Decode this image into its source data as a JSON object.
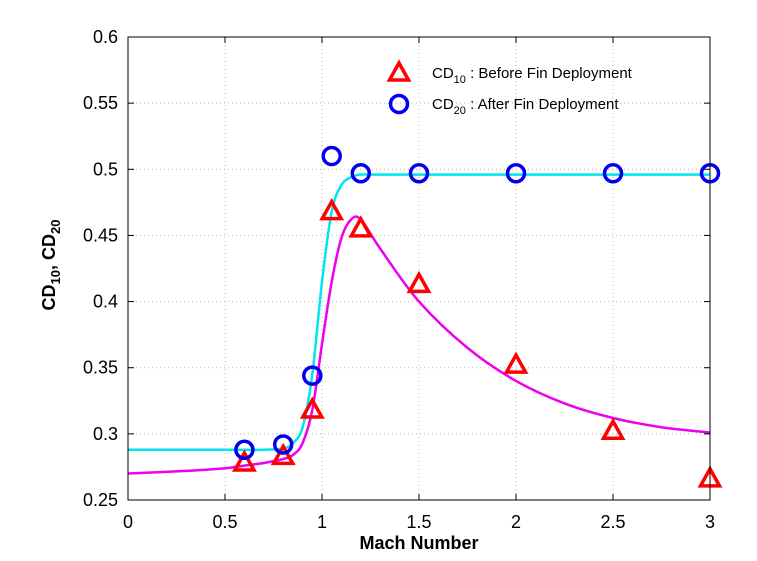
{
  "chart_data": {
    "type": "scatter",
    "xlabel": "Mach Number",
    "ylabel": {
      "base1": "CD",
      "sub1": "10",
      "sep": ", ",
      "base2": "CD",
      "sub2": "20"
    },
    "xlim": [
      0,
      3
    ],
    "ylim": [
      0.25,
      0.6
    ],
    "xticks": [
      "0",
      "0.5",
      "1",
      "1.5",
      "2",
      "2.5",
      "3"
    ],
    "yticks": [
      "0.25",
      "0.3",
      "0.35",
      "0.4",
      "0.45",
      "0.5",
      "0.55",
      "0.6"
    ],
    "grid": true,
    "legend_position": "top-right",
    "series": [
      {
        "legend": {
          "base": "CD",
          "sub": "10",
          "rest": " : Before Fin Deployment"
        },
        "marker": "triangle",
        "color": "#ff0000",
        "x": [
          0.6,
          0.8,
          0.95,
          1.05,
          1.2,
          1.5,
          2.0,
          2.5,
          3.0
        ],
        "y": [
          0.278,
          0.283,
          0.318,
          0.468,
          0.455,
          0.413,
          0.352,
          0.302,
          0.266
        ]
      },
      {
        "legend": {
          "base": "CD",
          "sub": "20",
          "rest": " : After Fin Deployment"
        },
        "marker": "circle",
        "color": "#0000ee",
        "x": [
          0.6,
          0.8,
          0.95,
          1.05,
          1.2,
          1.5,
          2.0,
          2.5,
          3.0
        ],
        "y": [
          0.288,
          0.292,
          0.344,
          0.51,
          0.497,
          0.497,
          0.497,
          0.497,
          0.497
        ]
      }
    ],
    "curves": [
      {
        "color": "#ee00ee",
        "x": [
          0,
          0.3,
          0.5,
          0.6,
          0.7,
          0.8,
          0.85,
          0.9,
          0.95,
          1.0,
          1.05,
          1.1,
          1.15,
          1.2,
          1.3,
          1.5,
          1.75,
          2.0,
          2.25,
          2.5,
          2.75,
          3.0
        ],
        "y": [
          0.27,
          0.272,
          0.274,
          0.276,
          0.278,
          0.281,
          0.284,
          0.293,
          0.318,
          0.368,
          0.415,
          0.448,
          0.462,
          0.462,
          0.44,
          0.4,
          0.365,
          0.34,
          0.323,
          0.312,
          0.305,
          0.301
        ]
      },
      {
        "color": "#00e5ee",
        "x": [
          0,
          0.5,
          0.7,
          0.8,
          0.85,
          0.9,
          0.95,
          1.0,
          1.05,
          1.1,
          1.15,
          1.2,
          1.3,
          1.5,
          2.0,
          2.5,
          3.0
        ],
        "y": [
          0.288,
          0.288,
          0.288,
          0.289,
          0.293,
          0.305,
          0.345,
          0.415,
          0.468,
          0.488,
          0.494,
          0.496,
          0.496,
          0.496,
          0.496,
          0.496,
          0.496
        ]
      }
    ]
  }
}
